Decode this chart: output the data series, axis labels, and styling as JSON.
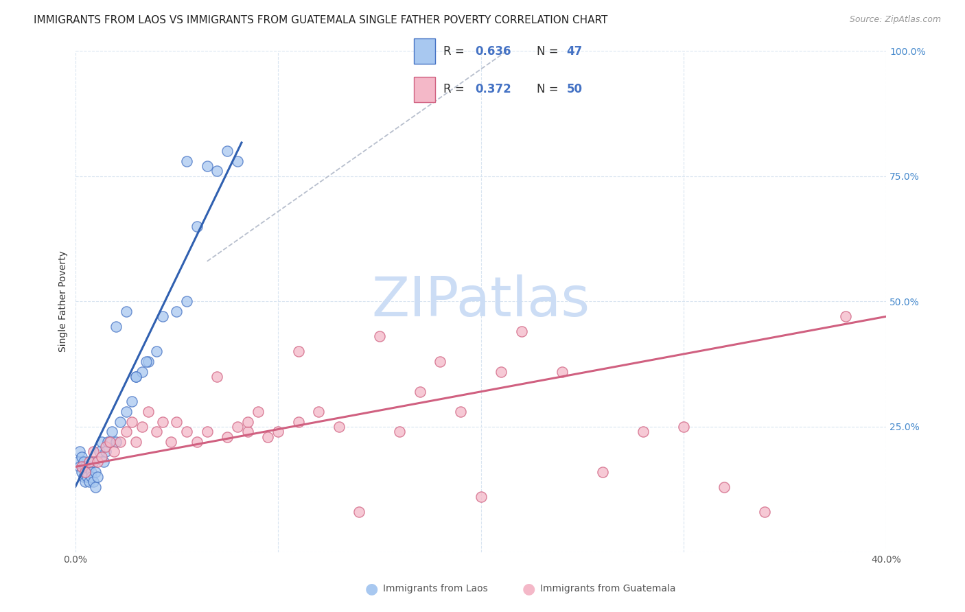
{
  "title": "IMMIGRANTS FROM LAOS VS IMMIGRANTS FROM GUATEMALA SINGLE FATHER POVERTY CORRELATION CHART",
  "source": "Source: ZipAtlas.com",
  "ylabel": "Single Father Poverty",
  "x_min": 0.0,
  "x_max": 0.4,
  "y_min": 0.0,
  "y_max": 1.0,
  "x_tick_positions": [
    0.0,
    0.1,
    0.2,
    0.3,
    0.4
  ],
  "x_tick_labels": [
    "0.0%",
    "",
    "",
    "",
    "40.0%"
  ],
  "y_tick_positions": [
    0.0,
    0.25,
    0.5,
    0.75,
    1.0
  ],
  "y_tick_labels_right": [
    "",
    "25.0%",
    "50.0%",
    "75.0%",
    "100.0%"
  ],
  "laos_color": "#a8c8f0",
  "laos_edge_color": "#4472c4",
  "laos_line_color": "#3060b0",
  "guatemala_color": "#f4b8c8",
  "guatemala_edge_color": "#d06080",
  "guatemala_line_color": "#d06080",
  "laos_R": 0.636,
  "laos_N": 47,
  "guatemala_R": 0.372,
  "guatemala_N": 50,
  "watermark": "ZIPatlas",
  "watermark_color": "#ccddf5",
  "laos_x": [
    0.001,
    0.002,
    0.002,
    0.003,
    0.003,
    0.004,
    0.004,
    0.005,
    0.005,
    0.006,
    0.006,
    0.007,
    0.007,
    0.008,
    0.008,
    0.009,
    0.009,
    0.01,
    0.01,
    0.011,
    0.012,
    0.013,
    0.014,
    0.015,
    0.016,
    0.018,
    0.02,
    0.022,
    0.025,
    0.028,
    0.03,
    0.033,
    0.036,
    0.04,
    0.043,
    0.05,
    0.055,
    0.06,
    0.065,
    0.07,
    0.075,
    0.08,
    0.02,
    0.025,
    0.03,
    0.035,
    0.055
  ],
  "laos_y": [
    0.18,
    0.2,
    0.17,
    0.19,
    0.16,
    0.18,
    0.15,
    0.17,
    0.14,
    0.16,
    0.15,
    0.17,
    0.14,
    0.16,
    0.15,
    0.18,
    0.14,
    0.16,
    0.13,
    0.15,
    0.2,
    0.22,
    0.18,
    0.2,
    0.22,
    0.24,
    0.22,
    0.26,
    0.28,
    0.3,
    0.35,
    0.36,
    0.38,
    0.4,
    0.47,
    0.48,
    0.5,
    0.65,
    0.77,
    0.76,
    0.8,
    0.78,
    0.45,
    0.48,
    0.35,
    0.38,
    0.78
  ],
  "guatemala_x": [
    0.003,
    0.005,
    0.007,
    0.009,
    0.011,
    0.013,
    0.015,
    0.017,
    0.019,
    0.022,
    0.025,
    0.028,
    0.03,
    0.033,
    0.036,
    0.04,
    0.043,
    0.047,
    0.05,
    0.055,
    0.06,
    0.065,
    0.07,
    0.075,
    0.08,
    0.085,
    0.09,
    0.095,
    0.1,
    0.11,
    0.12,
    0.13,
    0.14,
    0.15,
    0.16,
    0.17,
    0.18,
    0.19,
    0.2,
    0.21,
    0.22,
    0.24,
    0.26,
    0.28,
    0.3,
    0.32,
    0.34,
    0.085,
    0.11,
    0.38
  ],
  "guatemala_y": [
    0.17,
    0.16,
    0.18,
    0.2,
    0.18,
    0.19,
    0.21,
    0.22,
    0.2,
    0.22,
    0.24,
    0.26,
    0.22,
    0.25,
    0.28,
    0.24,
    0.26,
    0.22,
    0.26,
    0.24,
    0.22,
    0.24,
    0.35,
    0.23,
    0.25,
    0.24,
    0.28,
    0.23,
    0.24,
    0.26,
    0.28,
    0.25,
    0.08,
    0.43,
    0.24,
    0.32,
    0.38,
    0.28,
    0.11,
    0.36,
    0.44,
    0.36,
    0.16,
    0.24,
    0.25,
    0.13,
    0.08,
    0.26,
    0.4,
    0.47
  ],
  "background_color": "#ffffff",
  "grid_color": "#d8e4f0",
  "title_fontsize": 11,
  "label_fontsize": 10,
  "tick_fontsize": 10,
  "legend_fontsize": 12
}
